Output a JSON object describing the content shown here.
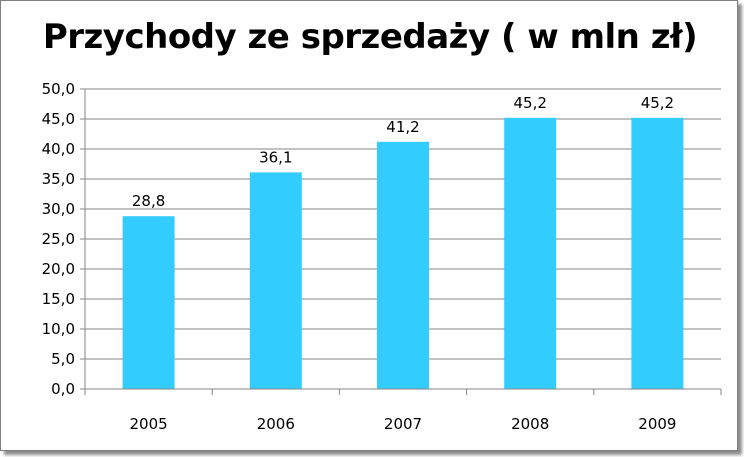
{
  "chart_data": {
    "type": "bar",
    "title": "Przychody ze sprzedaży ( w mln zł)",
    "categories": [
      "2005",
      "2006",
      "2007",
      "2008",
      "2009"
    ],
    "values": [
      28.8,
      36.1,
      41.2,
      45.2,
      45.2
    ],
    "value_labels": [
      "28,8",
      "36,1",
      "41,2",
      "45,2",
      "45,2"
    ],
    "ylim": [
      0,
      50
    ],
    "y_ticks": [
      0,
      5,
      10,
      15,
      20,
      25,
      30,
      35,
      40,
      45,
      50
    ],
    "y_tick_labels": [
      "0,0",
      "5,0",
      "10,0",
      "15,0",
      "20,0",
      "25,0",
      "30,0",
      "35,0",
      "40,0",
      "45,0",
      "50,0"
    ],
    "grid": true,
    "legend": "none",
    "bar_color": "#33CCFF",
    "gridline_color": "#868686"
  }
}
